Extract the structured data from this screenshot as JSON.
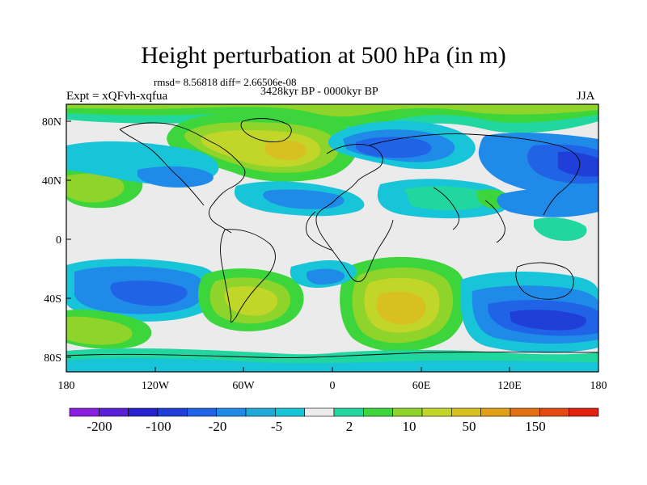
{
  "title": "Height perturbation at 500 hPa (in m)",
  "stats": "rmsd= 8.56818 diff= 2.66506e-08",
  "experiment": "Expt = xQFvh-xqfua",
  "period": "3428kyr BP - 0000kyr BP",
  "season": "JJA",
  "lat_ticks": [
    "80N",
    "40N",
    "0",
    "40S",
    "80S"
  ],
  "lon_ticks": [
    "180",
    "120W",
    "60W",
    "0",
    "60E",
    "120E",
    "180"
  ],
  "colorbar": {
    "labels": [
      "-200",
      "-100",
      "-20",
      "-5",
      "2",
      "10",
      "50",
      "150"
    ],
    "colors": [
      "#8a1fe0",
      "#5a22d6",
      "#2a1fcf",
      "#1f3fd8",
      "#2063e6",
      "#1f8ae8",
      "#1faad8",
      "#18c4d8",
      "#ebebeb",
      "#22d6a0",
      "#3cd63c",
      "#8ed42a",
      "#c2d62a",
      "#d8c020",
      "#e0a018",
      "#e27012",
      "#e24a10",
      "#e02010"
    ]
  },
  "colors": {
    "background": "#ebebeb",
    "strong_negative": "#2a4fd0",
    "negative": "#1f8ae8",
    "weak_negative": "#18c4d8",
    "weak_positive": "#22d6a0",
    "positive": "#3cd63c",
    "moderate_positive": "#c2d62a",
    "strong_positive": "#e0a018"
  }
}
